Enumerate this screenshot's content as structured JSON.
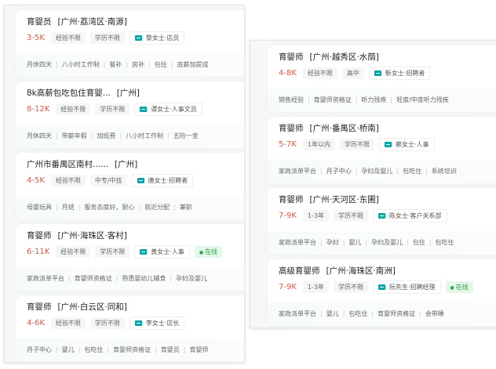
{
  "left_jobs": [
    {
      "title": "育婴员",
      "area": "[广州·荔湾区·南源]",
      "salary": "3-5K",
      "tags": [
        "经验不限",
        "学历不限"
      ],
      "boss": "黎女士·店员",
      "online": "",
      "welfare": [
        "月休四天",
        "八小时工作制",
        "餐补",
        "房补",
        "包住",
        "底薪加提成"
      ]
    },
    {
      "title": "8k高薪包吃包住育婴...",
      "area": "[广州]",
      "salary": "8-12K",
      "tags": [
        "经验不限",
        "学历不限"
      ],
      "boss": "谭女士·人事文员",
      "online": "",
      "welfare": [
        "月休四天",
        "带薪年假",
        "加班费",
        "八小时工作制",
        "五险一金"
      ]
    },
    {
      "title": "广州市番禺区南村......",
      "area": "[广州]",
      "salary": "4-5K",
      "tags": [
        "经验不限",
        "中专/中技"
      ],
      "boss": "唐女士·招聘者",
      "online": "",
      "welfare": [
        "母婴玩具",
        "月结",
        "服务态度好，耐心",
        "就近分配",
        "兼职"
      ]
    },
    {
      "title": "育婴师",
      "area": "[广州·海珠区·客村]",
      "salary": "6-11K",
      "tags": [
        "经验不限",
        "学历不限"
      ],
      "boss": "黄女士·人事",
      "online": "在线",
      "welfare": [
        "家政派单平台",
        "育婴师资格证",
        "熟悉婴幼儿辅食",
        "孕妇及婴儿"
      ]
    },
    {
      "title": "育婴师",
      "area": "[广州·白云区·同和]",
      "salary": "4-6K",
      "tags": [
        "经验不限",
        "学历不限"
      ],
      "boss": "李女士·店长",
      "online": "",
      "welfare": [
        "月子中心",
        "婴儿",
        "包吃住",
        "育婴师资格证",
        "育婴员",
        "育婴师"
      ]
    }
  ],
  "right_jobs": [
    {
      "title": "育婴师",
      "area": "[广州·越秀区·水荫]",
      "salary": "4-8K",
      "tags": [
        "经验不限",
        "高中"
      ],
      "boss": "靳女士·招聘者",
      "online": "",
      "welfare": [
        "销售经验",
        "育婴师资格证",
        "听力残疾",
        "轻度/中度听力残疾"
      ]
    },
    {
      "title": "育婴师",
      "area": "[广州·番禺区·桥南]",
      "salary": "5-7K",
      "tags": [
        "1年以内",
        "学历不限"
      ],
      "boss": "赖女士·人事",
      "online": "",
      "welfare": [
        "家政派单平台",
        "月子中心",
        "孕妇及婴儿",
        "包吃住",
        "系统培训"
      ]
    },
    {
      "title": "育婴师",
      "area": "[广州·天河区·东圃]",
      "salary": "7-9K",
      "tags": [
        "1-3年",
        "学历不限"
      ],
      "boss": "陈女士·客户关系部",
      "online": "",
      "welfare": [
        "家政派单平台",
        "孕妇",
        "婴儿",
        "孕妇及婴儿",
        "包住",
        "包吃住"
      ]
    },
    {
      "title": "高级育婴师",
      "area": "[广州·海珠区·南洲]",
      "salary": "7-9K",
      "tags": [
        "1-3年",
        "学历不限"
      ],
      "boss": "阮先生·招聘经理",
      "online": "在线",
      "welfare": [
        "家政派单平台",
        "婴儿",
        "包吃住",
        "育婴师资格证",
        "会带睡"
      ]
    }
  ],
  "colors": {
    "salary": "#e0574a",
    "chat_icon": "#00a6a7",
    "online": "#27a845"
  }
}
